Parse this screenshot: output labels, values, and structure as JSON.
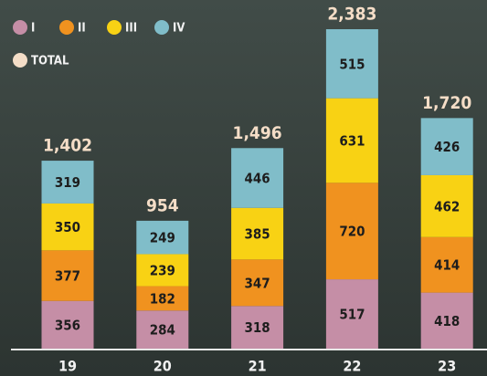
{
  "chart_data": {
    "type": "stacked-bar",
    "categories": [
      "19",
      "20",
      "21",
      "22",
      "23"
    ],
    "series": [
      {
        "name": "I",
        "color": "#c58ea6",
        "values": [
          356,
          284,
          318,
          517,
          418
        ]
      },
      {
        "name": "II",
        "color": "#f0921f",
        "values": [
          377,
          182,
          347,
          720,
          414
        ]
      },
      {
        "name": "III",
        "color": "#f8d214",
        "values": [
          350,
          239,
          385,
          631,
          462
        ]
      },
      {
        "name": "IV",
        "color": "#80bdc9",
        "values": [
          319,
          249,
          446,
          515,
          426
        ]
      }
    ],
    "totals": {
      "name": "TOTAL",
      "color": "#f4ddc7",
      "values": [
        1402,
        954,
        1496,
        2383,
        1720
      ],
      "value_labels": [
        "1,402",
        "954",
        "1,496",
        "2,383",
        "1,720"
      ]
    }
  }
}
